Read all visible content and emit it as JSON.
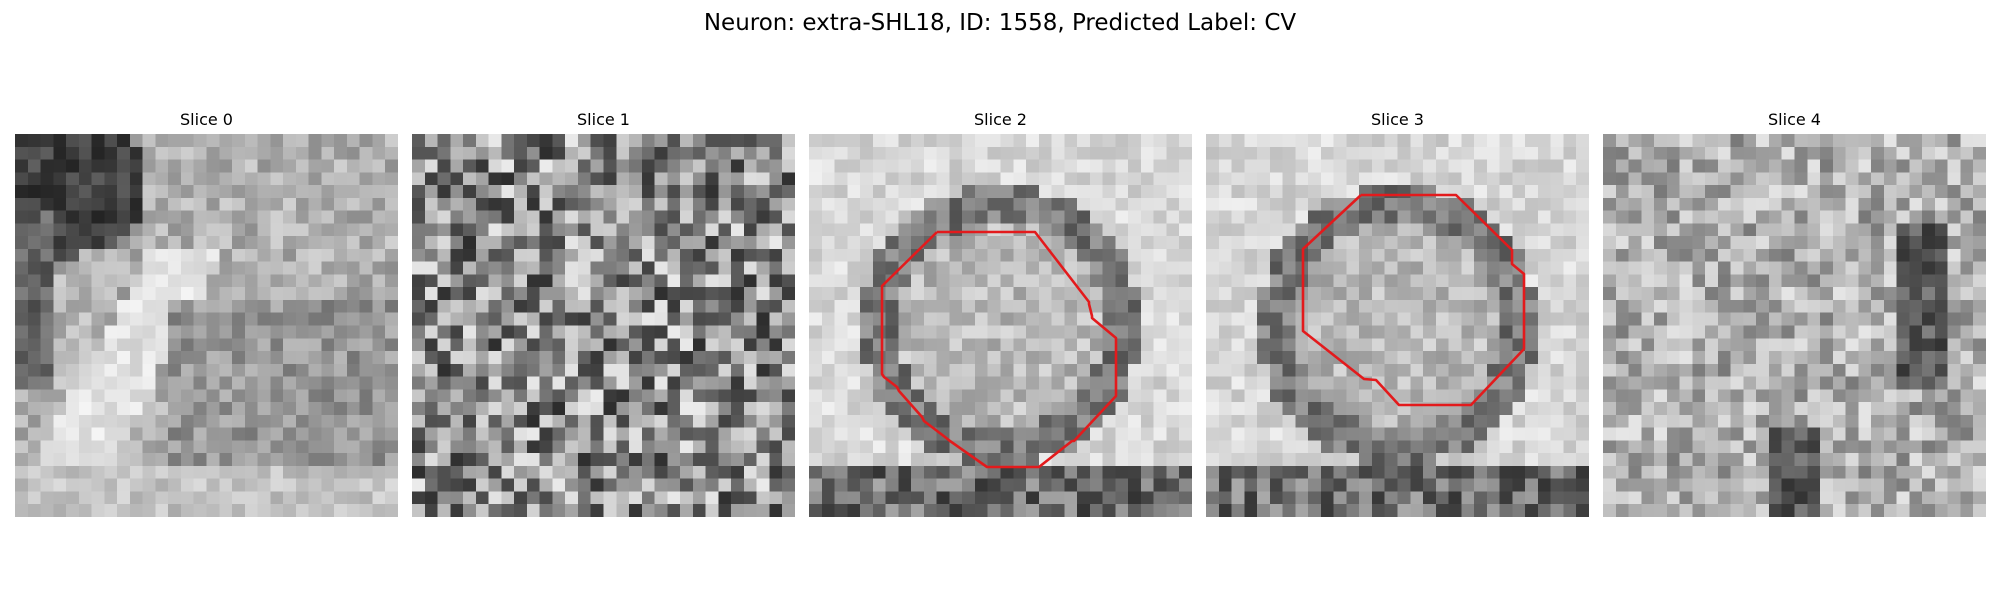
{
  "title": "Neuron: extra-SHL18, ID: 1558, Predicted Label: CV",
  "slices": [
    {
      "label": "Slice 0",
      "pattern": "edge",
      "seed": 11,
      "contour": false
    },
    {
      "label": "Slice 1",
      "pattern": "noise",
      "seed": 27,
      "contour": false
    },
    {
      "label": "Slice 2",
      "pattern": "vesicle",
      "seed": 43,
      "contour": true
    },
    {
      "label": "Slice 3",
      "pattern": "vesicle",
      "seed": 59,
      "contour": true
    },
    {
      "label": "Slice 4",
      "pattern": "mottled",
      "seed": 71,
      "contour": false
    }
  ],
  "colors": {
    "contour": "#e31a1c",
    "background": "#ffffff"
  }
}
